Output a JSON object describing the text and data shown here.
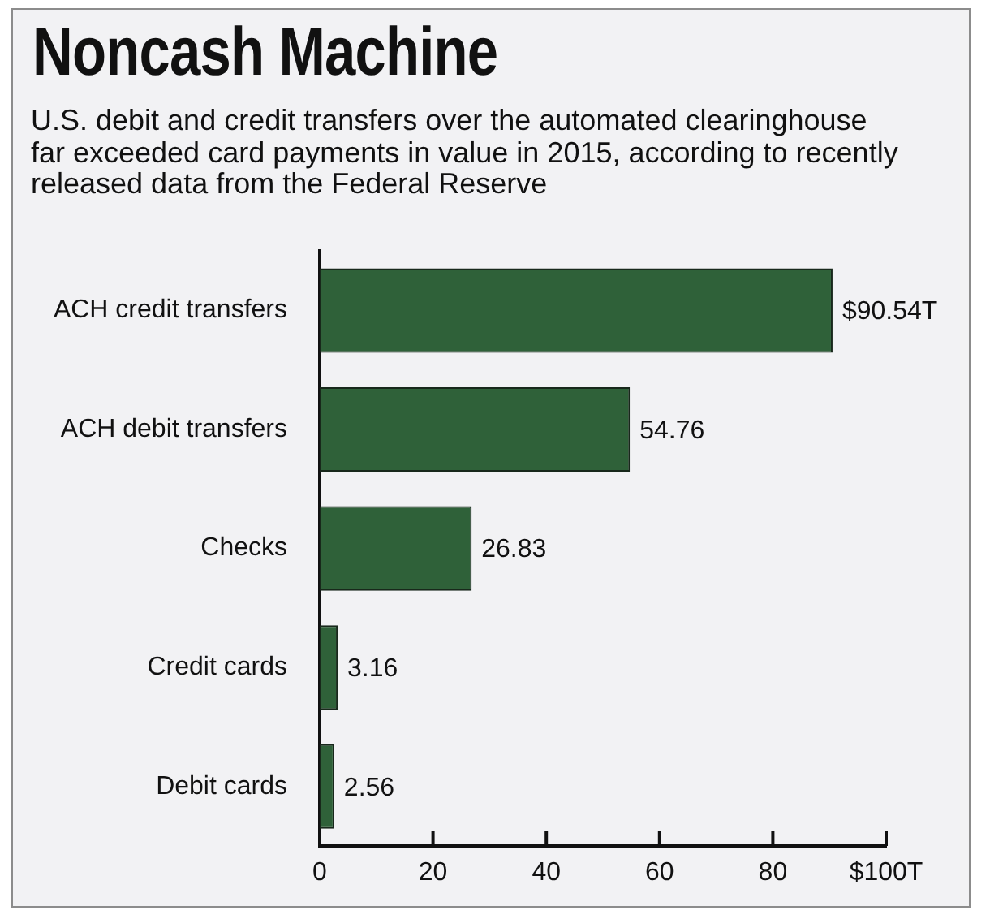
{
  "chart_data": {
    "type": "bar",
    "orientation": "horizontal",
    "title": "Noncash Machine",
    "subtitle": "U.S. debit and credit transfers over the automated clearinghouse\nfar exceeded card payments in value in 2015, according to recently\nreleased data from the Federal Reserve",
    "categories": [
      "ACH credit transfers",
      "ACH debit transfers",
      "Checks",
      "Credit cards",
      "Debit cards"
    ],
    "values": [
      90.54,
      54.76,
      26.83,
      3.16,
      2.56
    ],
    "value_labels": [
      "$90.54T",
      "54.76",
      "26.83",
      "3.16",
      "2.56"
    ],
    "color": "#2f6139",
    "xlim": [
      0,
      100
    ],
    "xticks": [
      0,
      20,
      40,
      60,
      80,
      {
        "value": 100,
        "label": "$100T"
      }
    ]
  }
}
